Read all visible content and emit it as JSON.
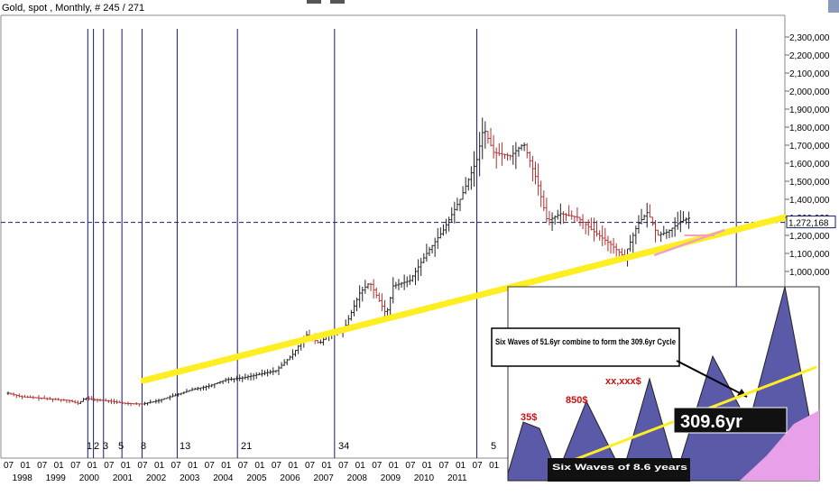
{
  "header": {
    "title": "Gold, spot , Monthly, # 245 / 271"
  },
  "colors": {
    "background": "#ffffff",
    "candle": "#222222",
    "candle_red": "#b03030",
    "cycle_line": "#1a1a6e",
    "trend_line": "#ffee22",
    "pink_line": "#f0a0c0",
    "price_line": "#1a1a6e",
    "inset_bg": "#ffffff",
    "inset_wave": "#5a5aa8",
    "inset_pink": "#e8a0e8",
    "inset_text_red": "#cc1111"
  },
  "chart_data": [
    {
      "type": "candlestick",
      "title": "Gold, spot , Monthly, # 245 / 271",
      "x_axis": {
        "month_labels": [
          "07",
          "01",
          "07",
          "01",
          "07",
          "01",
          "07",
          "01",
          "07",
          "01",
          "07",
          "01",
          "07",
          "01",
          "07",
          "01",
          "07",
          "01",
          "07",
          "01",
          "07",
          "01",
          "07",
          "01",
          "07",
          "01",
          "07",
          "01",
          "07",
          "01"
        ],
        "year_labels": [
          "1998",
          "1999",
          "2000",
          "2001",
          "2002",
          "2003",
          "2004",
          "2005",
          "2006",
          "2007",
          "2008",
          "2009",
          "2010",
          "2011"
        ]
      },
      "y_axis": {
        "tick_labels": [
          "2,300,000",
          "2,200,000",
          "2,100,000",
          "2,000,000",
          "1,900,000",
          "1,800,000",
          "1,700,000",
          "1,600,000",
          "1,500,000",
          "1,400,000",
          "1,300,000",
          "1,200,000",
          "1,100,000",
          "1,000,000"
        ],
        "range": [
          300,
          2400
        ],
        "current_price_label": "1,272,168",
        "current_price": 1272
      },
      "cycle_lines": {
        "labels": [
          "1",
          "2",
          "3",
          "5",
          "8",
          "13",
          "21",
          "34",
          "5"
        ],
        "positions": [
          1999.88,
          2000.05,
          2000.35,
          2000.9,
          2001.5,
          2002.55,
          2004.35,
          2007.25,
          2011.5,
          2019.25
        ]
      },
      "trend_line": {
        "start": [
          2001.55,
          395
        ],
        "end": [
          2020.7,
          1300
        ]
      },
      "pink_line": {
        "start": [
          2016.8,
          1090
        ],
        "end": [
          2018.9,
          1230
        ]
      },
      "series": [
        {
          "values": [
            {
              "x": 1997.5,
              "y": 325
            },
            {
              "x": 1997.9,
              "y": 305
            },
            {
              "x": 1998.3,
              "y": 300
            },
            {
              "x": 1998.8,
              "y": 292
            },
            {
              "x": 1999.3,
              "y": 285
            },
            {
              "x": 1999.6,
              "y": 268
            },
            {
              "x": 1999.8,
              "y": 300
            },
            {
              "x": 2000.0,
              "y": 290
            },
            {
              "x": 2000.5,
              "y": 282
            },
            {
              "x": 2001.0,
              "y": 268
            },
            {
              "x": 2001.5,
              "y": 265
            },
            {
              "x": 2002.0,
              "y": 285
            },
            {
              "x": 2002.5,
              "y": 315
            },
            {
              "x": 2003.0,
              "y": 345
            },
            {
              "x": 2003.5,
              "y": 365
            },
            {
              "x": 2004.0,
              "y": 400
            },
            {
              "x": 2004.5,
              "y": 410
            },
            {
              "x": 2005.0,
              "y": 430
            },
            {
              "x": 2005.5,
              "y": 450
            },
            {
              "x": 2006.0,
              "y": 540
            },
            {
              "x": 2006.4,
              "y": 650
            },
            {
              "x": 2006.8,
              "y": 600
            },
            {
              "x": 2007.0,
              "y": 640
            },
            {
              "x": 2007.5,
              "y": 665
            },
            {
              "x": 2008.0,
              "y": 880
            },
            {
              "x": 2008.3,
              "y": 940
            },
            {
              "x": 2008.8,
              "y": 760
            },
            {
              "x": 2009.0,
              "y": 920
            },
            {
              "x": 2009.5,
              "y": 950
            },
            {
              "x": 2010.0,
              "y": 1100
            },
            {
              "x": 2010.5,
              "y": 1230
            },
            {
              "x": 2011.0,
              "y": 1400
            },
            {
              "x": 2011.5,
              "y": 1620
            },
            {
              "x": 2011.7,
              "y": 1800
            },
            {
              "x": 2012.0,
              "y": 1660
            },
            {
              "x": 2012.5,
              "y": 1640
            },
            {
              "x": 2012.9,
              "y": 1710
            },
            {
              "x": 2013.3,
              "y": 1500
            },
            {
              "x": 2013.6,
              "y": 1280
            },
            {
              "x": 2014.0,
              "y": 1320
            },
            {
              "x": 2014.5,
              "y": 1300
            },
            {
              "x": 2015.0,
              "y": 1220
            },
            {
              "x": 2015.5,
              "y": 1150
            },
            {
              "x": 2015.9,
              "y": 1080
            },
            {
              "x": 2016.3,
              "y": 1260
            },
            {
              "x": 2016.6,
              "y": 1330
            },
            {
              "x": 2016.9,
              "y": 1200
            },
            {
              "x": 2017.2,
              "y": 1220
            },
            {
              "x": 2017.6,
              "y": 1280
            },
            {
              "x": 2017.9,
              "y": 1300
            }
          ]
        }
      ]
    },
    {
      "type": "diagram",
      "title": "Six Waves of 51.6yr combine to form the 309.6yr Cycle",
      "labels": {
        "callout": "Six Waves of 51.6yr combine to form the 309.6yr Cycle",
        "cycle": "309.6yr",
        "price_35": "35$",
        "price_850": "850$",
        "price_xx": "xx,xxx$",
        "bottom": "Six Waves of 8.6 years"
      }
    }
  ]
}
